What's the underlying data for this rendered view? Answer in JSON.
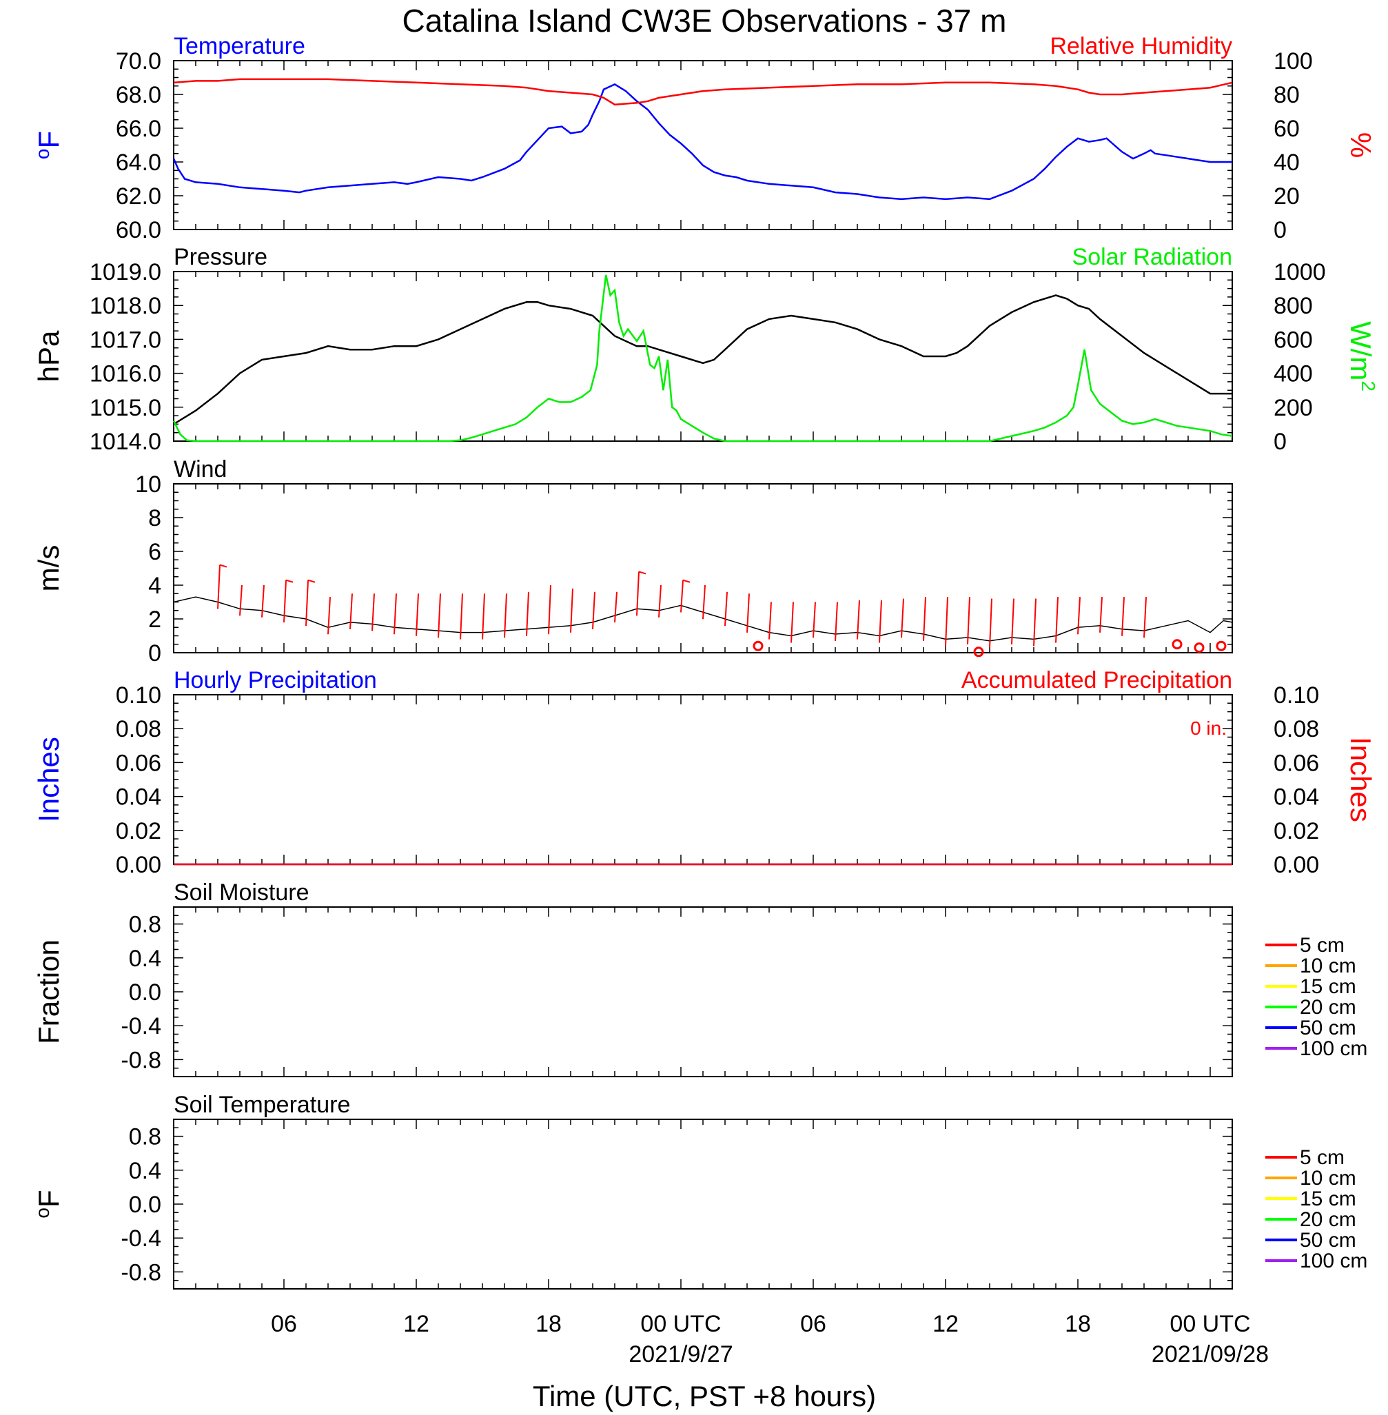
{
  "figure_title": "Catalina Island CW3E Observations - 37 m",
  "x_axis": {
    "label": "Time (UTC, PST +8 hours)",
    "ticks": [
      {
        "hour": 6,
        "label": "06",
        "date": ""
      },
      {
        "hour": 12,
        "label": "12",
        "date": ""
      },
      {
        "hour": 18,
        "label": "18",
        "date": ""
      },
      {
        "hour": 24,
        "label": "00 UTC",
        "date": "2021/9/27"
      },
      {
        "hour": 30,
        "label": "06",
        "date": ""
      },
      {
        "hour": 36,
        "label": "12",
        "date": ""
      },
      {
        "hour": 42,
        "label": "18",
        "date": ""
      },
      {
        "hour": 48,
        "label": "00 UTC",
        "date": "2021/09/28"
      }
    ]
  },
  "colors": {
    "temperature": "#0000ff",
    "humidity": "#ff0000",
    "pressure": "#000000",
    "solar": "#00ee00",
    "wind": "#000000",
    "barb": "#ff0000",
    "hourly_precip": "#0000ff",
    "accum_precip": "#ff0000"
  },
  "chart_data": [
    {
      "type": "line",
      "title_left": "Temperature",
      "title_right": "Relative Humidity",
      "ylabel_left": "oF",
      "ylabel_right": "%",
      "ylim_left": [
        60,
        70
      ],
      "ylim_right": [
        0,
        100
      ],
      "yticks_left": [
        "60.0",
        "62.0",
        "64.0",
        "66.0",
        "68.0",
        "70.0"
      ],
      "yticks_right": [
        "0",
        "20",
        "40",
        "60",
        "80",
        "100"
      ],
      "xlim_hours": [
        1,
        49
      ],
      "series": [
        {
          "name": "Temperature",
          "axis": "left",
          "x": [
            1,
            1.2,
            1.5,
            2,
            3,
            4,
            5,
            6,
            6.7,
            7,
            8,
            9,
            10,
            11,
            11.6,
            12,
            13,
            14,
            14.5,
            15,
            16,
            16.7,
            17,
            17.5,
            18,
            18.6,
            19,
            19.5,
            19.8,
            20,
            20.3,
            20.5,
            21,
            21.5,
            22,
            22.5,
            23,
            23.5,
            24,
            24.5,
            25,
            25.5,
            26,
            26.5,
            27,
            28,
            29,
            30,
            31,
            32,
            33,
            34,
            35,
            36,
            37,
            38,
            39,
            40,
            40.5,
            41,
            41.5,
            42,
            42.5,
            43,
            43.3,
            44,
            44.5,
            45,
            45.3,
            45.5,
            46,
            46.5,
            47,
            47.5,
            48,
            48.5,
            49
          ],
          "values": [
            64.2,
            63.6,
            63.0,
            62.8,
            62.7,
            62.5,
            62.4,
            62.3,
            62.2,
            62.3,
            62.5,
            62.6,
            62.7,
            62.8,
            62.7,
            62.8,
            63.1,
            63.0,
            62.9,
            63.1,
            63.6,
            64.1,
            64.6,
            65.3,
            66.0,
            66.1,
            65.7,
            65.8,
            66.2,
            66.8,
            67.6,
            68.3,
            68.6,
            68.2,
            67.6,
            67.1,
            66.3,
            65.6,
            65.1,
            64.5,
            63.8,
            63.4,
            63.2,
            63.1,
            62.9,
            62.7,
            62.6,
            62.5,
            62.2,
            62.1,
            61.9,
            61.8,
            61.9,
            61.8,
            61.9,
            61.8,
            62.3,
            63.0,
            63.6,
            64.3,
            64.9,
            65.4,
            65.2,
            65.3,
            65.4,
            64.6,
            64.2,
            64.5,
            64.7,
            64.5,
            64.4,
            64.3,
            64.2,
            64.1,
            64.0,
            64.0,
            64.0
          ]
        },
        {
          "name": "Relative Humidity",
          "axis": "right",
          "x": [
            1,
            2,
            3,
            4,
            6,
            8,
            10,
            12,
            14,
            16,
            17,
            18,
            19,
            20,
            20.5,
            21,
            22,
            22.5,
            23,
            24,
            25,
            26,
            28,
            30,
            32,
            34,
            36,
            38,
            40,
            41,
            42,
            42.5,
            43,
            44,
            45,
            46,
            47,
            48,
            49
          ],
          "values": [
            87,
            88,
            88,
            89,
            89,
            89,
            88,
            87,
            86,
            85,
            84,
            82,
            81,
            80,
            78,
            74,
            75,
            76,
            78,
            80,
            82,
            83,
            84,
            85,
            86,
            86,
            87,
            87,
            86,
            85,
            83,
            81,
            80,
            80,
            81,
            82,
            83,
            84,
            87
          ]
        }
      ]
    },
    {
      "type": "line",
      "title_left": "Pressure",
      "title_right": "Solar Radiation",
      "ylabel_left": "hPa",
      "ylabel_right": "W/m2",
      "ylim_left": [
        1014,
        1019
      ],
      "ylim_right": [
        0,
        1000
      ],
      "yticks_left": [
        "1014.0",
        "1015.0",
        "1016.0",
        "1017.0",
        "1018.0",
        "1019.0"
      ],
      "yticks_right": [
        "0",
        "200",
        "400",
        "600",
        "800",
        "1000"
      ],
      "xlim_hours": [
        1,
        49
      ],
      "series": [
        {
          "name": "Pressure",
          "axis": "left",
          "x": [
            1,
            2,
            3,
            4,
            5,
            6,
            7,
            8,
            9,
            10,
            11,
            12,
            13,
            14,
            15,
            16,
            17,
            17.5,
            18,
            19,
            20,
            21,
            22,
            22.5,
            23,
            24,
            25,
            25.5,
            26,
            27,
            28,
            29,
            30,
            31,
            32,
            33,
            34,
            35,
            36,
            36.5,
            37,
            38,
            39,
            40,
            41,
            41.5,
            42,
            42.5,
            43,
            44,
            45,
            46,
            47,
            48,
            49
          ],
          "values": [
            1014.5,
            1014.9,
            1015.4,
            1016.0,
            1016.4,
            1016.5,
            1016.6,
            1016.8,
            1016.7,
            1016.7,
            1016.8,
            1016.8,
            1017.0,
            1017.3,
            1017.6,
            1017.9,
            1018.1,
            1018.1,
            1018.0,
            1017.9,
            1017.7,
            1017.1,
            1016.8,
            1016.8,
            1016.7,
            1016.5,
            1016.3,
            1016.4,
            1016.7,
            1017.3,
            1017.6,
            1017.7,
            1017.6,
            1017.5,
            1017.3,
            1017.0,
            1016.8,
            1016.5,
            1016.5,
            1016.6,
            1016.8,
            1017.4,
            1017.8,
            1018.1,
            1018.3,
            1018.2,
            1018.0,
            1017.9,
            1017.6,
            1017.1,
            1016.6,
            1016.2,
            1015.8,
            1015.4,
            1015.4
          ]
        },
        {
          "name": "Solar Radiation",
          "axis": "right",
          "x": [
            1,
            1.3,
            1.6,
            2,
            13.5,
            14,
            14.5,
            15,
            15.5,
            16,
            16.5,
            17,
            17.5,
            18,
            18.5,
            19,
            19.5,
            19.9,
            20.2,
            20.3,
            20.6,
            20.8,
            21,
            21.2,
            21.4,
            21.6,
            22,
            22.3,
            22.6,
            22.8,
            23,
            23.2,
            23.4,
            23.6,
            23.8,
            24,
            24.5,
            25,
            25.5,
            26,
            38,
            39,
            40,
            40.5,
            41,
            41.5,
            41.8,
            42,
            42.3,
            42.6,
            43,
            43.5,
            44,
            44.5,
            45,
            45.5,
            46,
            46.5,
            47,
            47.5,
            48,
            48.5,
            49
          ],
          "values": [
            120,
            40,
            5,
            0,
            0,
            5,
            20,
            40,
            60,
            80,
            100,
            140,
            200,
            250,
            230,
            230,
            260,
            300,
            450,
            650,
            980,
            860,
            890,
            700,
            620,
            660,
            590,
            650,
            450,
            430,
            500,
            300,
            480,
            200,
            180,
            130,
            90,
            50,
            15,
            0,
            0,
            30,
            60,
            80,
            110,
            150,
            200,
            330,
            540,
            300,
            220,
            170,
            120,
            100,
            110,
            130,
            110,
            90,
            80,
            70,
            60,
            40,
            30
          ]
        }
      ]
    },
    {
      "type": "line",
      "title_left": "Wind",
      "ylabel_left": "m/s",
      "ylim_left": [
        0,
        10
      ],
      "yticks_left": [
        "0",
        "2",
        "4",
        "6",
        "8",
        "10"
      ],
      "xlim_hours": [
        1,
        49
      ],
      "series": [
        {
          "name": "Wind speed",
          "axis": "left",
          "x": [
            1,
            2,
            3,
            4,
            5,
            6,
            7,
            8,
            9,
            10,
            11,
            12,
            13,
            14,
            15,
            16,
            17,
            18,
            19,
            20,
            21,
            22,
            23,
            24,
            25,
            26,
            27,
            28,
            29,
            30,
            31,
            32,
            33,
            34,
            35,
            36,
            37,
            38,
            39,
            40,
            41,
            42,
            43,
            44,
            45,
            46,
            47,
            48,
            48.6,
            49
          ],
          "values": [
            3.0,
            3.3,
            3.0,
            2.6,
            2.5,
            2.2,
            2.0,
            1.5,
            1.8,
            1.7,
            1.5,
            1.4,
            1.3,
            1.2,
            1.2,
            1.3,
            1.4,
            1.5,
            1.6,
            1.8,
            2.2,
            2.6,
            2.5,
            2.8,
            2.4,
            2.0,
            1.6,
            1.2,
            1.0,
            1.3,
            1.1,
            1.2,
            1.0,
            1.3,
            1.1,
            0.8,
            0.9,
            0.7,
            0.9,
            0.8,
            1.0,
            1.5,
            1.6,
            1.4,
            1.3,
            1.6,
            1.9,
            1.2,
            1.9,
            1.8
          ]
        }
      ],
      "barbs_x": [
        3,
        4,
        5,
        6,
        7,
        8,
        9,
        10,
        11,
        12,
        13,
        14,
        15,
        16,
        17,
        18,
        19,
        20,
        21,
        22,
        23,
        24,
        25,
        26,
        27,
        28,
        29,
        30,
        31,
        32,
        33,
        34,
        35,
        36,
        37,
        38,
        39,
        40,
        41,
        42,
        43,
        44,
        45
      ],
      "barbs_top": [
        5.2,
        4.0,
        4.0,
        4.3,
        4.3,
        3.3,
        3.5,
        3.5,
        3.5,
        3.5,
        3.5,
        3.5,
        3.5,
        3.5,
        3.6,
        4.0,
        3.8,
        3.6,
        3.6,
        4.8,
        4.0,
        4.3,
        4.0,
        3.6,
        3.5,
        3.0,
        3.0,
        3.0,
        3.0,
        3.1,
        3.1,
        3.2,
        3.3,
        3.3,
        3.3,
        3.2,
        3.2,
        3.2,
        3.3,
        3.3,
        3.3,
        3.3,
        3.3
      ],
      "calm_x": [
        27.5,
        37.5,
        46.5,
        47.5,
        48.5
      ],
      "calm_y": [
        0.4,
        0.05,
        0.5,
        0.3,
        0.4
      ]
    },
    {
      "type": "bar",
      "title_left": "Hourly Precipitation",
      "title_right": "Accumulated Precipitation",
      "annotation": "0 in.",
      "ylabel_left": "Inches",
      "ylabel_right": "Inches",
      "ylim_left": [
        0,
        0.1
      ],
      "ylim_right": [
        0,
        0.1
      ],
      "yticks_left": [
        "0.00",
        "0.02",
        "0.04",
        "0.06",
        "0.08",
        "0.10"
      ],
      "yticks_right": [
        "0.00",
        "0.02",
        "0.04",
        "0.06",
        "0.08",
        "0.10"
      ],
      "xlim_hours": [
        1,
        49
      ],
      "series": [
        {
          "name": "Hourly Precipitation",
          "axis": "left",
          "x": [
            1,
            49
          ],
          "values": [
            0,
            0
          ]
        },
        {
          "name": "Accumulated Precipitation",
          "axis": "right",
          "x": [
            1,
            49
          ],
          "values": [
            0,
            0
          ]
        }
      ]
    },
    {
      "type": "line",
      "title_left": "Soil Moisture",
      "ylabel_left": "Fraction",
      "ylim_left": [
        -1,
        1
      ],
      "yticks_left": [
        "-0.8",
        "-0.4",
        "0.0",
        "0.4",
        "0.8"
      ],
      "ytick_values": [
        -0.8,
        -0.4,
        0.0,
        0.4,
        0.8
      ],
      "xlim_hours": [
        1,
        49
      ],
      "legend": [
        {
          "label": "5 cm",
          "color": "#ff0000"
        },
        {
          "label": "10 cm",
          "color": "#ffa500"
        },
        {
          "label": "15 cm",
          "color": "#ffff00"
        },
        {
          "label": "20 cm",
          "color": "#00ff00"
        },
        {
          "label": "50 cm",
          "color": "#0000ff"
        },
        {
          "label": "100 cm",
          "color": "#a020f0"
        }
      ]
    },
    {
      "type": "line",
      "title_left": "Soil Temperature",
      "ylabel_left": "oF",
      "ylim_left": [
        -1,
        1
      ],
      "yticks_left": [
        "-0.8",
        "-0.4",
        "0.0",
        "0.4",
        "0.8"
      ],
      "ytick_values": [
        -0.8,
        -0.4,
        0.0,
        0.4,
        0.8
      ],
      "xlim_hours": [
        1,
        49
      ],
      "legend": [
        {
          "label": "5 cm",
          "color": "#ff0000"
        },
        {
          "label": "10 cm",
          "color": "#ffa500"
        },
        {
          "label": "15 cm",
          "color": "#ffff00"
        },
        {
          "label": "20 cm",
          "color": "#00ff00"
        },
        {
          "label": "50 cm",
          "color": "#0000ff"
        },
        {
          "label": "100 cm",
          "color": "#a020f0"
        }
      ]
    }
  ]
}
